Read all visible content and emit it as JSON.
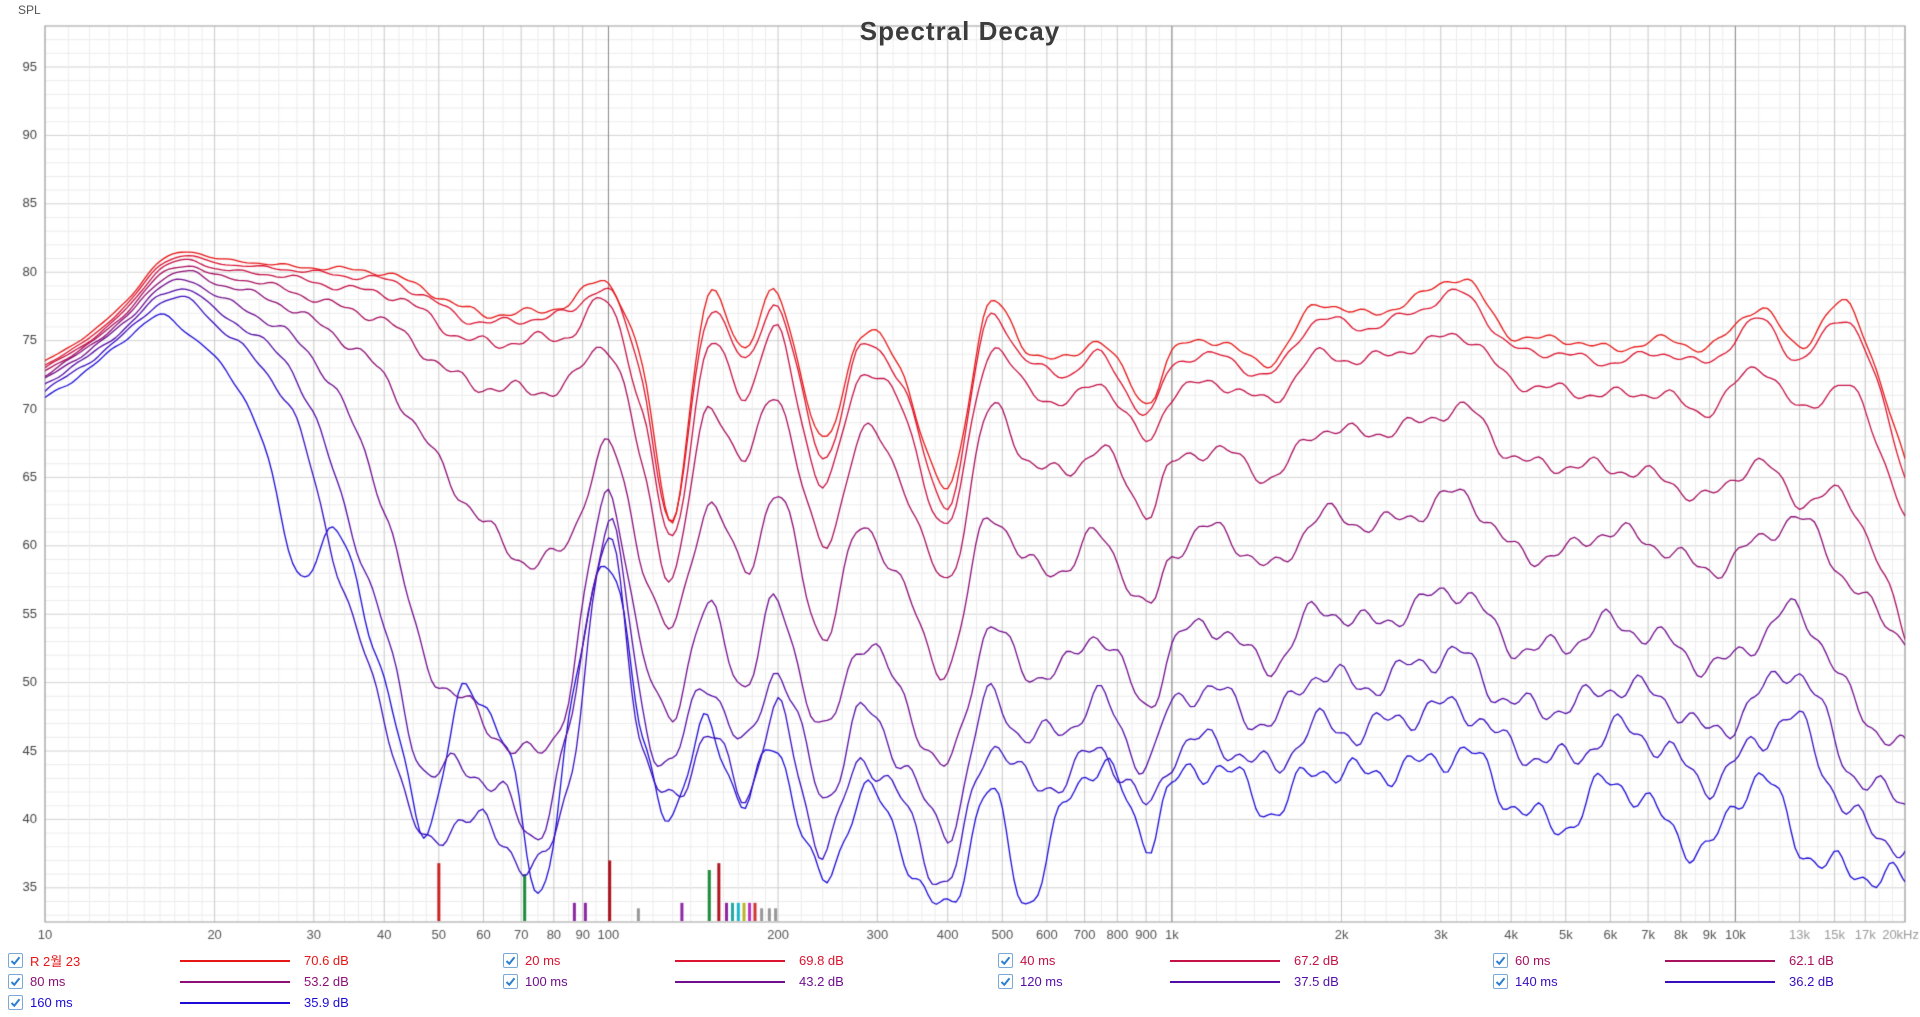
{
  "title": "Spectral Decay",
  "y_axis_label": "SPL",
  "legend_rows": [
    [
      0,
      1,
      2,
      3
    ],
    [
      4,
      5,
      6,
      7
    ],
    [
      8
    ]
  ],
  "legend": {
    "checkbox_color": "#2f7fd0",
    "all_checked": true
  },
  "chart_data": {
    "type": "line",
    "title": "Spectral Decay",
    "x_scale": "log",
    "x_unit": "Hz",
    "xlim": [
      10,
      20000
    ],
    "ylim": [
      32.5,
      98
    ],
    "grid": true,
    "legend_position": "bottom",
    "x_major_lines": [
      100,
      1000,
      10000
    ],
    "y_ticks": [
      35,
      40,
      45,
      50,
      55,
      60,
      65,
      70,
      75,
      80,
      85,
      90,
      95
    ],
    "x_ticks": [
      {
        "f": 10,
        "label": "10"
      },
      {
        "f": 20,
        "label": "20"
      },
      {
        "f": 30,
        "label": "30"
      },
      {
        "f": 40,
        "label": "40"
      },
      {
        "f": 50,
        "label": "50"
      },
      {
        "f": 60,
        "label": "60"
      },
      {
        "f": 70,
        "label": "70"
      },
      {
        "f": 80,
        "label": "80"
      },
      {
        "f": 90,
        "label": "90"
      },
      {
        "f": 100,
        "label": "100"
      },
      {
        "f": 200,
        "label": "200"
      },
      {
        "f": 300,
        "label": "300"
      },
      {
        "f": 400,
        "label": "400"
      },
      {
        "f": 500,
        "label": "500"
      },
      {
        "f": 600,
        "label": "600"
      },
      {
        "f": 700,
        "label": "700"
      },
      {
        "f": 800,
        "label": "800"
      },
      {
        "f": 900,
        "label": "900"
      },
      {
        "f": 1000,
        "label": "1k"
      },
      {
        "f": 2000,
        "label": "2k"
      },
      {
        "f": 3000,
        "label": "3k"
      },
      {
        "f": 4000,
        "label": "4k"
      },
      {
        "f": 5000,
        "label": "5k"
      },
      {
        "f": 6000,
        "label": "6k"
      },
      {
        "f": 7000,
        "label": "7k"
      },
      {
        "f": 8000,
        "label": "8k"
      },
      {
        "f": 9000,
        "label": "9k"
      },
      {
        "f": 10000,
        "label": "10k"
      },
      {
        "f": 13000,
        "label": "13k",
        "muted": true
      },
      {
        "f": 15000,
        "label": "15k",
        "muted": true
      },
      {
        "f": 17000,
        "label": "17k",
        "muted": true
      },
      {
        "f": 20000,
        "label": "20kHz",
        "muted": true
      }
    ],
    "frequencies": [
      10,
      12,
      14,
      16,
      18,
      20,
      24,
      28,
      33,
      40,
      47,
      55,
      65,
      75,
      85,
      100,
      115,
      130,
      150,
      175,
      200,
      240,
      280,
      330,
      400,
      470,
      550,
      650,
      750,
      900,
      1000,
      1200,
      1500,
      1800,
      2200,
      2700,
      3300,
      4000,
      5000,
      6000,
      7500,
      9000,
      11000,
      13000,
      16000,
      20000
    ],
    "series": [
      {
        "name": "R 2월 23",
        "level_db": "70.6 dB",
        "color": "#e61717",
        "texture": 0.5,
        "values": [
          73.5,
          75.5,
          78,
          80.8,
          81.5,
          81,
          80.7,
          80.4,
          80.2,
          80,
          78.8,
          77.3,
          77,
          77.2,
          77.6,
          79.3,
          73,
          62,
          78,
          74.5,
          78.5,
          67.5,
          75.5,
          73,
          64,
          77.5,
          74.5,
          73.5,
          75,
          70.5,
          74,
          75,
          73.5,
          77.5,
          77,
          78,
          79.5,
          75.5,
          75,
          74.5,
          75,
          74.5,
          77.5,
          74.5,
          77.5,
          66
        ]
      },
      {
        "name": "20 ms",
        "level_db": "69.8 dB",
        "color": "#db1430",
        "texture": 0.5,
        "values": [
          73.2,
          75.2,
          77.7,
          80.5,
          81.2,
          80.7,
          80.4,
          80.1,
          79.8,
          79.5,
          78.2,
          76.7,
          76.4,
          76.6,
          77,
          78.8,
          72,
          61.5,
          77,
          73.5,
          77.5,
          66.5,
          74.5,
          72,
          63,
          76.5,
          73.5,
          72.5,
          74,
          69.5,
          73,
          74,
          72.5,
          76.5,
          76,
          77,
          78.5,
          74.5,
          74,
          73.5,
          74,
          73.5,
          76.5,
          73.5,
          76.5,
          65
        ]
      },
      {
        "name": "40 ms",
        "level_db": "67.2 dB",
        "color": "#c41247",
        "texture": 0.7,
        "values": [
          73,
          75,
          77.4,
          80.2,
          80.9,
          80.3,
          79.9,
          79.5,
          79,
          78.4,
          77,
          75.3,
          74.8,
          75,
          75.5,
          77.8,
          69.5,
          60.5,
          74.5,
          71,
          75.5,
          64.5,
          72.5,
          70,
          61.5,
          74,
          71.5,
          70.5,
          72,
          67.5,
          71,
          72,
          70.5,
          74,
          73.5,
          74.5,
          75.5,
          72,
          71.5,
          71,
          71,
          70,
          73,
          70,
          71.5,
          62
        ]
      },
      {
        "name": "60 ms",
        "level_db": "62.1 dB",
        "color": "#a8115e",
        "texture": 0.9,
        "values": [
          72.8,
          74.8,
          77.1,
          79.8,
          80.5,
          79.8,
          79.2,
          78.5,
          77.6,
          76.3,
          74.3,
          72.2,
          71.3,
          71.4,
          72,
          74.5,
          65.5,
          58,
          70,
          66,
          71,
          60,
          68,
          65,
          57.5,
          69.5,
          66.5,
          65.5,
          67,
          62.5,
          66,
          67,
          65,
          68.5,
          68,
          69,
          70,
          66.5,
          66,
          65.5,
          65,
          63.5,
          66,
          63.5,
          63,
          53.5
        ]
      },
      {
        "name": "80 ms",
        "level_db": "53.2 dB",
        "color": "#8c1076",
        "texture": 1.1,
        "values": [
          72.5,
          74.6,
          76.8,
          79.4,
          80.1,
          79.2,
          78.3,
          77.2,
          75.3,
          72.3,
          68,
          63.5,
          60,
          59,
          60.5,
          67,
          59,
          54,
          63,
          58,
          64,
          53.5,
          61,
          57.5,
          51,
          62,
          59,
          58.5,
          60.5,
          55.5,
          59.5,
          61,
          58.5,
          62,
          61.5,
          62.5,
          63.5,
          60,
          59.5,
          61,
          60,
          58,
          60.5,
          62,
          57,
          53.5
        ]
      },
      {
        "name": "100 ms",
        "level_db": "43.2 dB",
        "color": "#700f8e",
        "texture": 1.3,
        "values": [
          72.2,
          74.3,
          76.5,
          78.9,
          79.4,
          78.3,
          76.8,
          75,
          71,
          63,
          52,
          48.5,
          46,
          45,
          49,
          64,
          52,
          48,
          55,
          50,
          56,
          46,
          53,
          49.5,
          43.5,
          54,
          51,
          51,
          53.5,
          48.5,
          52.5,
          54,
          51.5,
          55,
          54.5,
          55.5,
          56.5,
          53,
          52.5,
          54.5,
          53,
          51,
          53.5,
          55,
          49,
          45
        ]
      },
      {
        "name": "120 ms",
        "level_db": "37.5 dB",
        "color": "#540ea6",
        "texture": 1.45,
        "values": [
          71.8,
          73.9,
          76.1,
          78.3,
          78.7,
          77.3,
          75.2,
          72.2,
          64.5,
          54,
          43.5,
          44,
          42,
          39,
          46,
          62,
          48,
          44,
          50,
          45.5,
          51,
          41.5,
          48,
          44.5,
          39,
          49,
          46,
          46.5,
          49,
          44,
          48,
          49.5,
          47,
          50.5,
          50,
          51,
          52,
          48.5,
          48,
          50,
          48.5,
          46.5,
          49,
          50.5,
          44,
          41
        ]
      },
      {
        "name": "140 ms",
        "level_db": "36.2 dB",
        "color": "#380dbe",
        "texture": 1.55,
        "values": [
          71.3,
          73.5,
          75.7,
          77.7,
          78,
          76.3,
          73.3,
          68.8,
          58.5,
          47.5,
          38,
          40.5,
          38.5,
          36,
          43,
          60.5,
          45,
          41,
          46.5,
          42,
          47.5,
          38,
          44.5,
          41,
          35.5,
          45.5,
          42.5,
          43,
          45.5,
          40.5,
          44.5,
          46,
          43.5,
          47,
          46.5,
          47.5,
          48.5,
          45,
          44.5,
          46.5,
          45,
          43,
          45.5,
          47,
          40.5,
          37.5
        ]
      },
      {
        "name": "160 ms",
        "level_db": "35.9 dB",
        "color": "#1c0cd6",
        "texture": 1.65,
        "values": [
          70.8,
          73,
          75.2,
          76.8,
          75.5,
          73.8,
          68.5,
          58,
          61,
          50,
          39.5,
          49,
          46,
          34.5,
          47,
          59.5,
          45,
          41,
          47,
          41,
          45,
          35.5,
          42,
          38,
          33.5,
          42,
          34,
          41.5,
          44,
          38.5,
          42.5,
          44,
          40.5,
          44,
          43,
          44,
          45,
          41,
          40,
          42.5,
          40,
          38,
          43,
          38.5,
          36,
          35.5
        ]
      }
    ],
    "markers": [
      {
        "f": 50,
        "top_db": 36.8,
        "color": "#c82323"
      },
      {
        "f": 71,
        "top_db": 36.0,
        "color": "#1e8c3c"
      },
      {
        "f": 87,
        "top_db": 33.9,
        "color": "#8c27a3"
      },
      {
        "f": 91,
        "top_db": 33.9,
        "color": "#8c27a3"
      },
      {
        "f": 100.5,
        "top_db": 37.0,
        "color": "#ad1420"
      },
      {
        "f": 113,
        "top_db": 33.5,
        "color": "#979797"
      },
      {
        "f": 135,
        "top_db": 33.9,
        "color": "#8c27a3"
      },
      {
        "f": 151,
        "top_db": 36.3,
        "color": "#1e8c3c"
      },
      {
        "f": 157,
        "top_db": 36.8,
        "color": "#ad1420"
      },
      {
        "f": 162,
        "top_db": 33.9,
        "color": "#8c27a3"
      },
      {
        "f": 166,
        "top_db": 33.9,
        "color": "#23a7a7"
      },
      {
        "f": 170,
        "top_db": 33.9,
        "color": "#18b6c9"
      },
      {
        "f": 174,
        "top_db": 33.9,
        "color": "#b5b527"
      },
      {
        "f": 178,
        "top_db": 33.9,
        "color": "#bd35bd"
      },
      {
        "f": 182,
        "top_db": 33.9,
        "color": "#d23434"
      },
      {
        "f": 187,
        "top_db": 33.5,
        "color": "#979797"
      },
      {
        "f": 193,
        "top_db": 33.5,
        "color": "#979797"
      },
      {
        "f": 198,
        "top_db": 33.5,
        "color": "#979797"
      }
    ]
  }
}
